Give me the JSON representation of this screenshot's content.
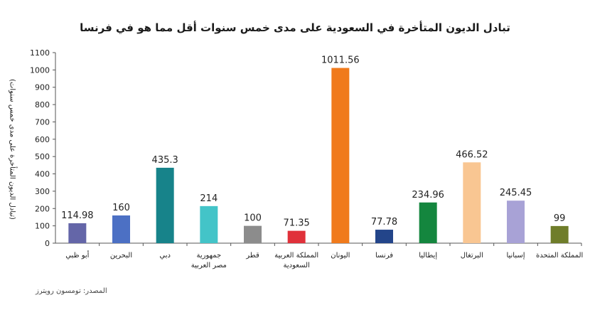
{
  "chart_data": {
    "type": "bar",
    "title": "تبادل الديون المتأخرة في السعودية على مدى خمس سنوات أقل مما هو في فرنسا",
    "ylabel": "(تبادل الديون المتأخرة على مدى خمس سنوات)",
    "ylim": [
      0,
      1100
    ],
    "yticks": [
      "0",
      "100",
      "200",
      "300",
      "400",
      "500",
      "600",
      "700",
      "800",
      "900",
      "1000",
      "1100"
    ],
    "grid": false,
    "legend": "none",
    "categories": [
      "أبو ظبي",
      "البحرين",
      "دبي",
      "جمهورية مصر العربية",
      "قطر",
      "المملكة العربية السعودية",
      "اليونان",
      "فرنسا",
      "إيطاليا",
      "البرتغال",
      "إسبانيا",
      "المملكة المتحدة"
    ],
    "category_lines": [
      [
        "أبو ظبي"
      ],
      [
        "البحرين"
      ],
      [
        "دبي"
      ],
      [
        "جمهورية",
        "مصر العربية"
      ],
      [
        "قطر"
      ],
      [
        "المملكة العربية",
        "السعودية"
      ],
      [
        "اليونان"
      ],
      [
        "فرنسا"
      ],
      [
        "إيطاليا"
      ],
      [
        "البرتغال"
      ],
      [
        "إسبانيا"
      ],
      [
        "المملكة المتحدة"
      ]
    ],
    "values": [
      114.98,
      160,
      435.3,
      214,
      100,
      71.35,
      1011.56,
      77.78,
      234.96,
      466.52,
      245.45,
      99
    ],
    "value_labels": [
      "114.98",
      "160",
      "435.3",
      "214",
      "100",
      "71.35",
      "1011.56",
      "77.78",
      "234.96",
      "466.52",
      "245.45",
      "99"
    ],
    "colors": [
      "#6466a8",
      "#4c70c4",
      "#17838a",
      "#43c4c8",
      "#8c8c8c",
      "#e0313a",
      "#f07a1c",
      "#23458a",
      "#14863e",
      "#f9c692",
      "#a8a2d6",
      "#6f7d2a"
    ]
  },
  "source": "المصدر: تومسون رويترز"
}
